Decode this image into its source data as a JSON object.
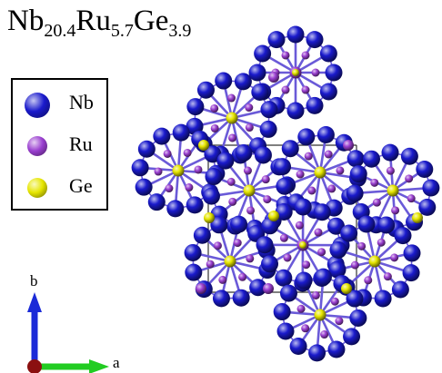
{
  "title": {
    "parts": [
      {
        "text": "Nb",
        "sub": "20.4"
      },
      {
        "text": "Ru",
        "sub": "5.7"
      },
      {
        "text": "Ge",
        "sub": "3.9"
      }
    ]
  },
  "legend": {
    "items": [
      {
        "label": "Nb",
        "color": "#1a1acc"
      },
      {
        "label": "Ru",
        "color": "#9a3fd0"
      },
      {
        "label": "Ge",
        "color": "#e6e600"
      }
    ]
  },
  "axes": {
    "b_label": "b",
    "a_label": "a",
    "b_color": "#1a2ad8",
    "a_color": "#22cc22",
    "origin_color": "#8b1010"
  },
  "colors": {
    "nb": "#1a1acc",
    "ru": "#9a3fd0",
    "ge": "#e6e600",
    "bond": "#6a5ad8",
    "cell": "#333333"
  }
}
